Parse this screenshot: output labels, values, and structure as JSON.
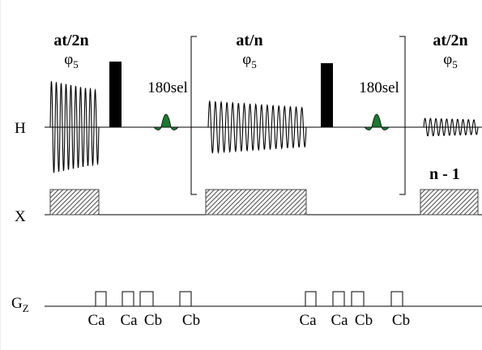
{
  "blocks": [
    {
      "title": "at/2n",
      "phase": "φ",
      "phase_sub": "5"
    },
    {
      "title": "at/n",
      "phase": "φ",
      "phase_sub": "5"
    },
    {
      "title": "at/2n",
      "phase": "φ",
      "phase_sub": "5"
    }
  ],
  "selective_pulses": [
    "180sel",
    "180sel"
  ],
  "channels": {
    "h": "H",
    "x": "X",
    "gz": "G",
    "gz_sub": "Z"
  },
  "loop": "n - 1",
  "gradients": [
    "Ca",
    "Ca",
    "Cb",
    "Cb",
    "Ca",
    "Ca",
    "Cb",
    "Cb"
  ]
}
